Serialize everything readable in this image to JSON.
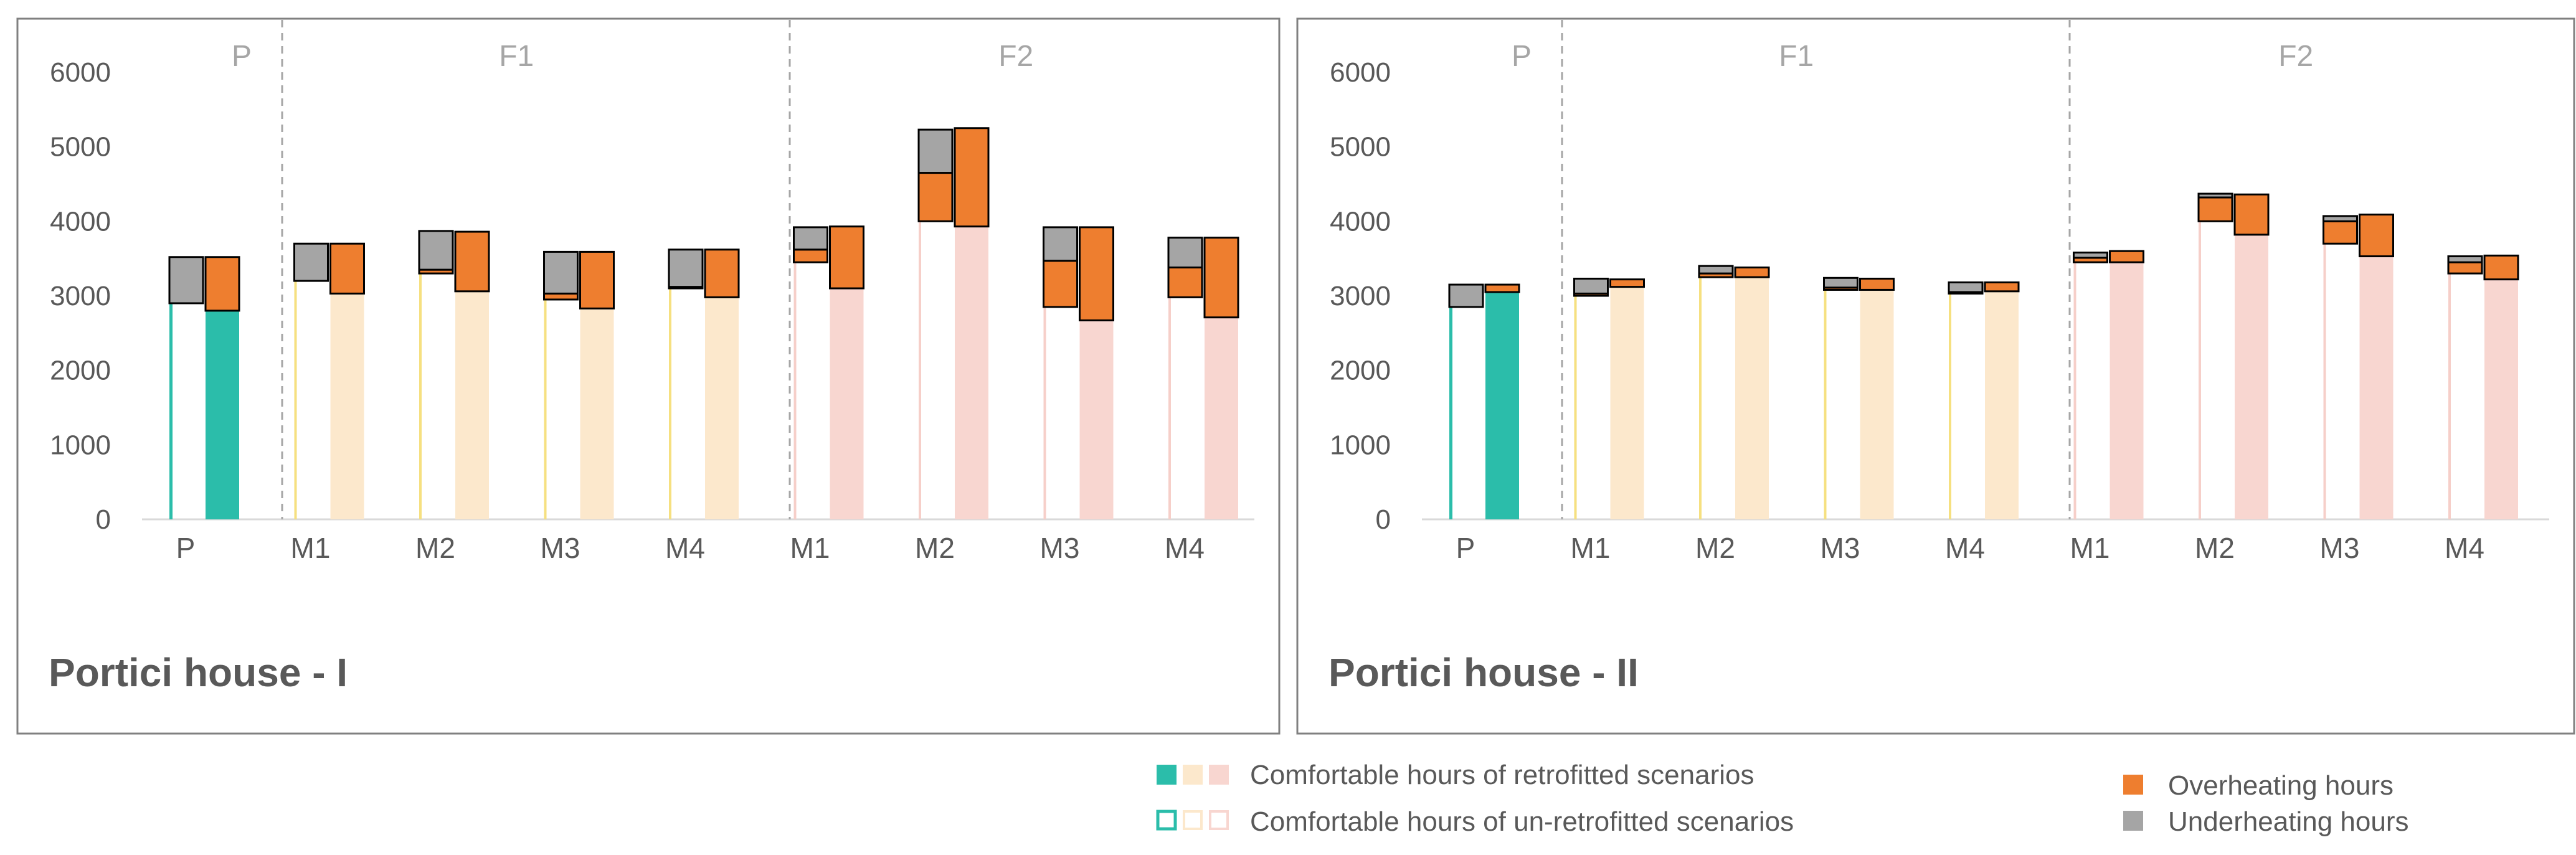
{
  "colors": {
    "teal": "#2bbdaa",
    "f1_fill": "#fce8cc",
    "f1_outline": "#f6e080",
    "f2_fill": "#f8d6d0",
    "f2_outline": "#f6cfc9",
    "overheating": "#ee7e2f",
    "underheating": "#a5a5a5",
    "axis_text": "#595959",
    "group_text": "#a6a6a6",
    "title_text": "#595959",
    "frame": "#808080"
  },
  "legend": {
    "comfortable_retrofitted": "Comfortable hours of retrofitted scenarios",
    "comfortable_unretrofitted": "Comfortable hours of un-retrofitted scenarios",
    "overheating": "Overheating hours",
    "underheating": "Underheating hours"
  },
  "chart_data": [
    {
      "type": "bar",
      "title": "Portici house - I",
      "ylim": [
        0,
        6000
      ],
      "yticks": [
        "0",
        "1000",
        "2000",
        "3000",
        "4000",
        "5000",
        "6000"
      ],
      "groups": [
        {
          "label": "P",
          "count": 1
        },
        {
          "label": "F1",
          "count": 4
        },
        {
          "label": "F2",
          "count": 4
        }
      ],
      "categories": [
        "P",
        "M1",
        "M2",
        "M3",
        "M4",
        "M1",
        "M2",
        "M3",
        "M4"
      ],
      "cat_groups": [
        "P",
        "F1",
        "F1",
        "F1",
        "F1",
        "F2",
        "F2",
        "F2",
        "F2"
      ],
      "unretrofitted": {
        "comfortable": [
          2900,
          3200,
          3300,
          2950,
          3100,
          3450,
          4000,
          2850,
          2980
        ],
        "overheating": [
          0,
          0,
          50,
          80,
          20,
          170,
          650,
          620,
          400
        ],
        "underheating": [
          620,
          500,
          520,
          560,
          500,
          300,
          580,
          450,
          400
        ]
      },
      "retrofitted": {
        "comfortable": [
          2800,
          3030,
          3060,
          2830,
          2980,
          3100,
          3930,
          2670,
          2710
        ],
        "overheating": [
          720,
          670,
          800,
          760,
          640,
          830,
          1320,
          1250,
          1070
        ],
        "underheating": [
          0,
          0,
          0,
          0,
          0,
          0,
          0,
          0,
          0
        ]
      }
    },
    {
      "type": "bar",
      "title": "Portici house - II",
      "ylim": [
        0,
        6000
      ],
      "yticks": [
        "0",
        "1000",
        "2000",
        "3000",
        "4000",
        "5000",
        "6000"
      ],
      "groups": [
        {
          "label": "P",
          "count": 1
        },
        {
          "label": "F1",
          "count": 4
        },
        {
          "label": "F2",
          "count": 4
        }
      ],
      "categories": [
        "P",
        "M1",
        "M2",
        "M3",
        "M4",
        "M1",
        "M2",
        "M3",
        "M4"
      ],
      "cat_groups": [
        "P",
        "F1",
        "F1",
        "F1",
        "F1",
        "F2",
        "F2",
        "F2",
        "F2"
      ],
      "unretrofitted": {
        "comfortable": [
          2850,
          3000,
          3250,
          3080,
          3030,
          3450,
          4000,
          3700,
          3300
        ],
        "overheating": [
          0,
          30,
          50,
          30,
          20,
          60,
          320,
          300,
          150
        ],
        "underheating": [
          300,
          200,
          100,
          130,
          130,
          70,
          50,
          70,
          80
        ]
      },
      "retrofitted": {
        "comfortable": [
          3050,
          3120,
          3250,
          3080,
          3060,
          3450,
          3820,
          3530,
          3220
        ],
        "overheating": [
          100,
          100,
          130,
          150,
          120,
          150,
          540,
          560,
          320
        ],
        "underheating": [
          0,
          0,
          0,
          0,
          0,
          0,
          0,
          0,
          0
        ]
      }
    }
  ]
}
